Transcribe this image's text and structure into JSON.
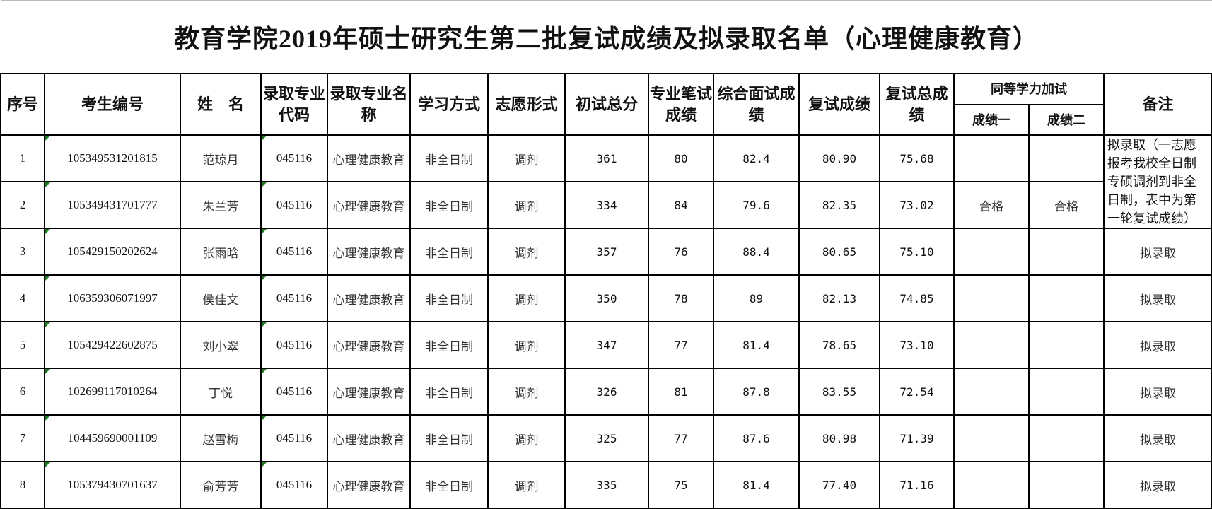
{
  "title": "教育学院2019年硕士研究生第二批复试成绩及拟录取名单（心理健康教育）",
  "headers": {
    "seq": "序号",
    "exam_id": "考生编号",
    "name": "姓　名",
    "major_code": "录取专业代码",
    "major_name": "录取专业名 称",
    "study_mode": "学习方式",
    "volunteer": "志愿形式",
    "prelim_total": "初试总分",
    "written": "专业笔试成绩",
    "interview": "综合面试成绩",
    "retest": "复试成绩",
    "retest_total": "复试总成绩",
    "equiv_group": "同等学力加试",
    "equiv_1": "成绩一",
    "equiv_2": "成绩二",
    "remark": "备注"
  },
  "rows": [
    {
      "seq": "1",
      "exam_id": "105349531201815",
      "name": "范琼月",
      "major_code": "045116",
      "major_name": "心理健康教育",
      "study_mode": "非全日制",
      "volunteer": "调剂",
      "prelim_total": "361",
      "written": "80",
      "interview": "82.4",
      "retest": "80.90",
      "retest_total": "75.68",
      "equiv_1": "",
      "equiv_2": "",
      "remark": "拟录取（一志愿报考我校全日制专硕调剂到非全日制，表中为第一轮复试成绩）"
    },
    {
      "seq": "2",
      "exam_id": "105349431701777",
      "name": "朱兰芳",
      "major_code": "045116",
      "major_name": "心理健康教育",
      "study_mode": "非全日制",
      "volunteer": "调剂",
      "prelim_total": "334",
      "written": "84",
      "interview": "79.6",
      "retest": "82.35",
      "retest_total": "73.02",
      "equiv_1": "合格",
      "equiv_2": "合格",
      "remark": null
    },
    {
      "seq": "3",
      "exam_id": "105429150202624",
      "name": "张雨晗",
      "major_code": "045116",
      "major_name": "心理健康教育",
      "study_mode": "非全日制",
      "volunteer": "调剂",
      "prelim_total": "357",
      "written": "76",
      "interview": "88.4",
      "retest": "80.65",
      "retest_total": "75.10",
      "equiv_1": "",
      "equiv_2": "",
      "remark": "拟录取"
    },
    {
      "seq": "4",
      "exam_id": "106359306071997",
      "name": "侯佳文",
      "major_code": "045116",
      "major_name": "心理健康教育",
      "study_mode": "非全日制",
      "volunteer": "调剂",
      "prelim_total": "350",
      "written": "78",
      "interview": "89",
      "retest": "82.13",
      "retest_total": "74.85",
      "equiv_1": "",
      "equiv_2": "",
      "remark": "拟录取"
    },
    {
      "seq": "5",
      "exam_id": "105429422602875",
      "name": "刘小翠",
      "major_code": "045116",
      "major_name": "心理健康教育",
      "study_mode": "非全日制",
      "volunteer": "调剂",
      "prelim_total": "347",
      "written": "77",
      "interview": "81.4",
      "retest": "78.65",
      "retest_total": "73.10",
      "equiv_1": "",
      "equiv_2": "",
      "remark": "拟录取"
    },
    {
      "seq": "6",
      "exam_id": "102699117010264",
      "name": "丁悦",
      "major_code": "045116",
      "major_name": "心理健康教育",
      "study_mode": "非全日制",
      "volunteer": "调剂",
      "prelim_total": "326",
      "written": "81",
      "interview": "87.8",
      "retest": "83.55",
      "retest_total": "72.54",
      "equiv_1": "",
      "equiv_2": "",
      "remark": "拟录取"
    },
    {
      "seq": "7",
      "exam_id": "104459690001109",
      "name": "赵雪梅",
      "major_code": "045116",
      "major_name": "心理健康教育",
      "study_mode": "非全日制",
      "volunteer": "调剂",
      "prelim_total": "325",
      "written": "77",
      "interview": "87.6",
      "retest": "80.98",
      "retest_total": "71.39",
      "equiv_1": "",
      "equiv_2": "",
      "remark": "拟录取"
    },
    {
      "seq": "8",
      "exam_id": "105379430701637",
      "name": "俞芳芳",
      "major_code": "045116",
      "major_name": "心理健康教育",
      "study_mode": "非全日制",
      "volunteer": "调剂",
      "prelim_total": "335",
      "written": "75",
      "interview": "81.4",
      "retest": "77.40",
      "retest_total": "71.16",
      "equiv_1": "",
      "equiv_2": "",
      "remark": "拟录取"
    }
  ]
}
